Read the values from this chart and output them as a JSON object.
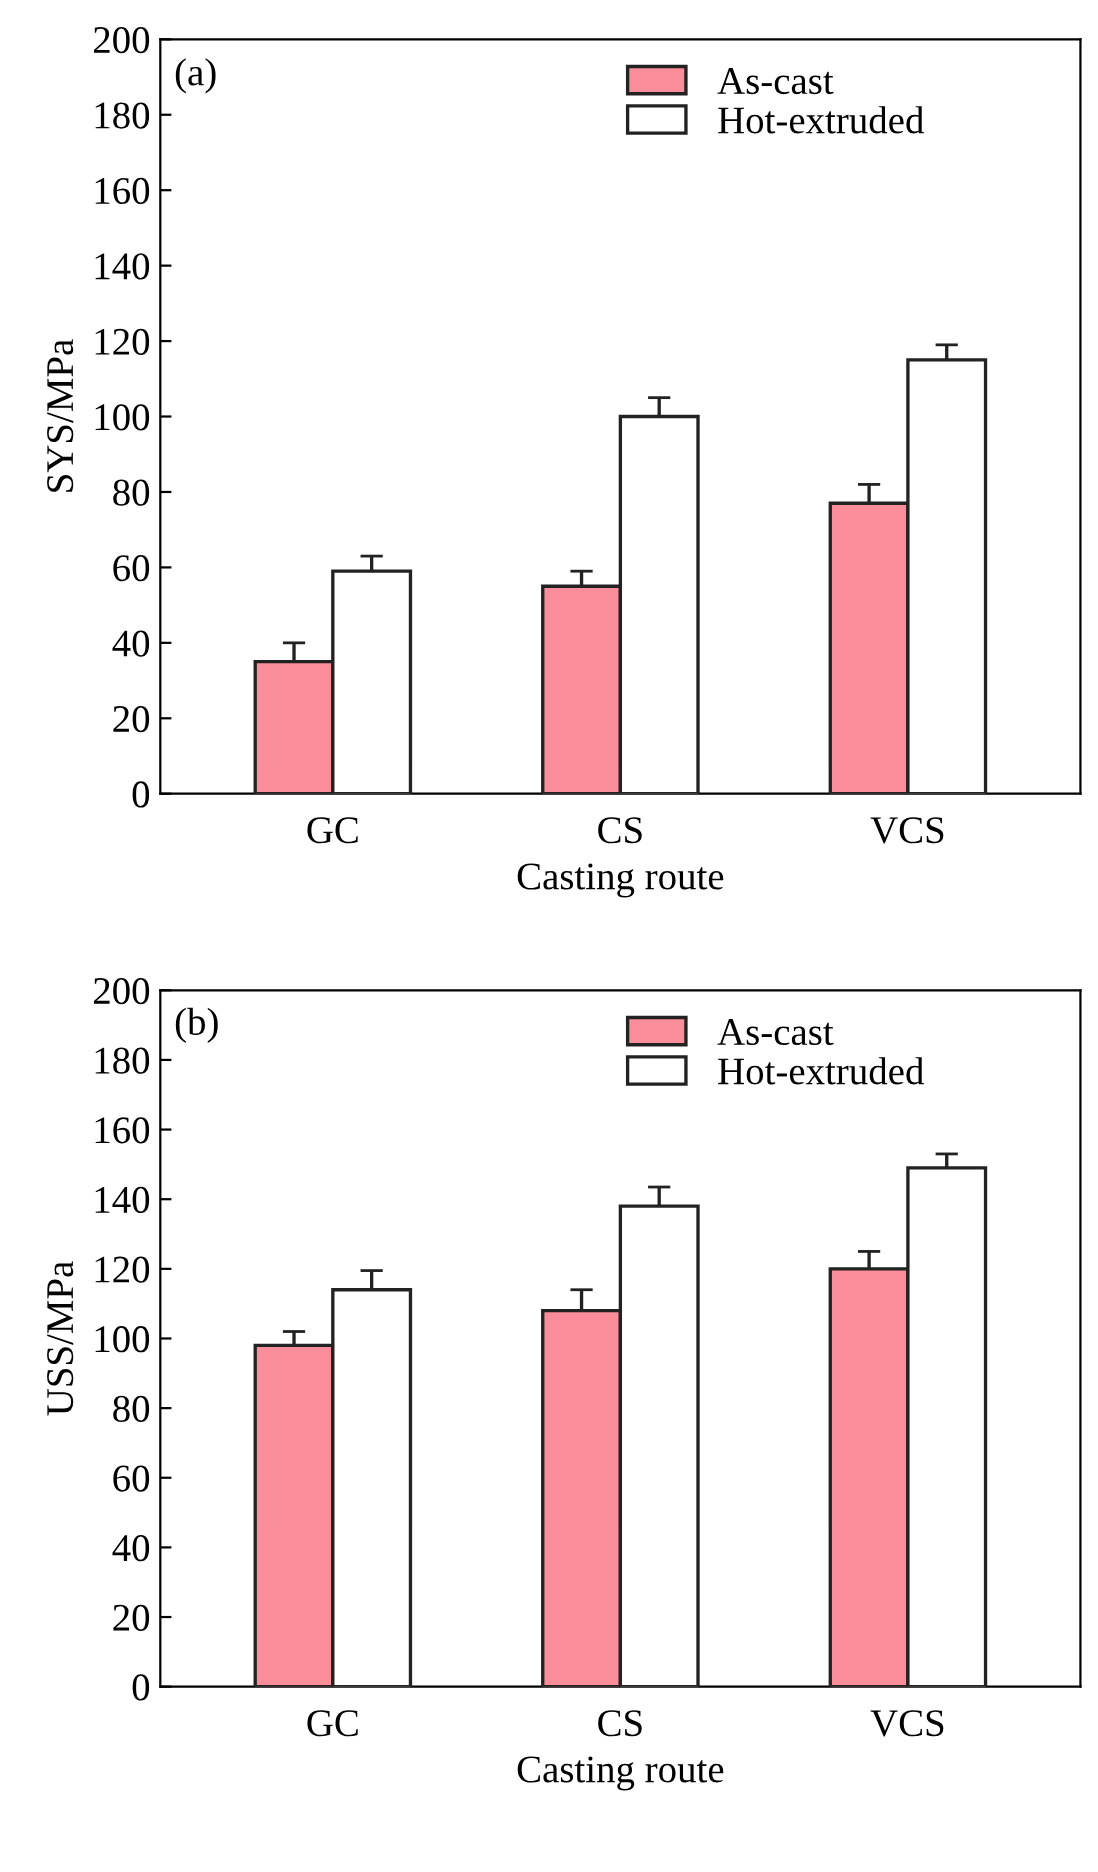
{
  "chart_data": [
    {
      "type": "bar",
      "xlabel": "Casting route",
      "ylabel": "SYS/MPa",
      "categories": [
        "GC",
        "CS",
        "VCS"
      ],
      "ylim": [
        0,
        200
      ],
      "yticks": [
        0,
        20,
        40,
        60,
        80,
        100,
        120,
        140,
        160,
        180,
        200
      ],
      "legend": "top right",
      "annotations": [
        "(a)"
      ],
      "series": [
        {
          "name": "As-cast",
          "color": "#f98d9a",
          "values": [
            35,
            55,
            77
          ],
          "errors": [
            5,
            4,
            5
          ]
        },
        {
          "name": "Hot-extruded",
          "color": "#ffffff",
          "values": [
            59,
            100,
            115
          ],
          "errors": [
            4,
            5,
            4
          ]
        }
      ]
    },
    {
      "type": "bar",
      "xlabel": "Casting route",
      "ylabel": "USS/MPa",
      "categories": [
        "GC",
        "CS",
        "VCS"
      ],
      "ylim": [
        0,
        200
      ],
      "yticks": [
        0,
        20,
        40,
        60,
        80,
        100,
        120,
        140,
        160,
        180,
        200
      ],
      "legend": "top right",
      "annotations": [
        "(b)"
      ],
      "series": [
        {
          "name": "As-cast",
          "color": "#f98d9a",
          "values": [
            98,
            108,
            120
          ],
          "errors": [
            4,
            6,
            5
          ]
        },
        {
          "name": "Hot-extruded",
          "color": "#ffffff",
          "values": [
            114,
            138,
            149
          ],
          "errors": [
            5.5,
            5.5,
            4
          ]
        }
      ]
    }
  ]
}
